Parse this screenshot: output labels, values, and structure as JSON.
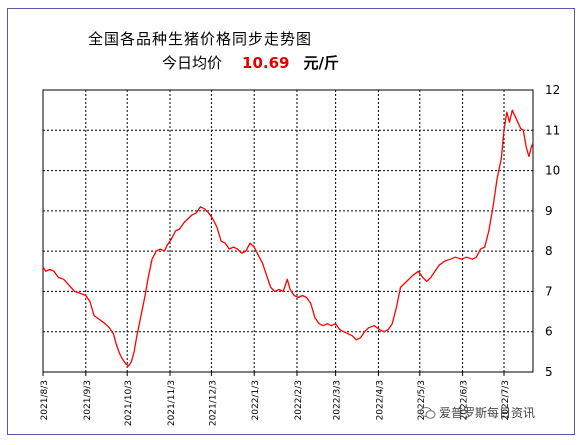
{
  "chart_data": {
    "type": "line",
    "title": "全国各品种生猪价格同步走势图",
    "subtitle_label": "今日均价",
    "subtitle_value": "10.69",
    "subtitle_unit": "元/斤",
    "x_tick_labels": [
      "2021/8/3",
      "2021/9/3",
      "2021/10/3",
      "2021/11/3",
      "2021/12/3",
      "2022/1/3",
      "2022/2/3",
      "2022/3/3",
      "2022/4/3",
      "2022/5/3",
      "2022/6/3",
      "2022/7/3"
    ],
    "x_range": [
      "2021-08-03",
      "2022-07-24"
    ],
    "ylim": [
      5,
      12
    ],
    "y_ticks": [
      5,
      6,
      7,
      8,
      9,
      10,
      11,
      12
    ],
    "grid": true,
    "line_color": "#ff0000",
    "series": [
      {
        "points": [
          [
            "2021-08-03",
            7.6
          ],
          [
            "2021-08-05",
            7.5
          ],
          [
            "2021-08-08",
            7.55
          ],
          [
            "2021-08-11",
            7.5
          ],
          [
            "2021-08-14",
            7.35
          ],
          [
            "2021-08-18",
            7.3
          ],
          [
            "2021-08-22",
            7.15
          ],
          [
            "2021-08-26",
            7.0
          ],
          [
            "2021-08-30",
            6.95
          ],
          [
            "2021-09-03",
            6.9
          ],
          [
            "2021-09-06",
            6.75
          ],
          [
            "2021-09-09",
            6.4
          ],
          [
            "2021-09-13",
            6.3
          ],
          [
            "2021-09-17",
            6.2
          ],
          [
            "2021-09-20",
            6.1
          ],
          [
            "2021-09-23",
            5.95
          ],
          [
            "2021-09-25",
            5.7
          ],
          [
            "2021-09-27",
            5.5
          ],
          [
            "2021-09-29",
            5.35
          ],
          [
            "2021-10-02",
            5.2
          ],
          [
            "2021-10-04",
            5.15
          ],
          [
            "2021-10-06",
            5.25
          ],
          [
            "2021-10-08",
            5.5
          ],
          [
            "2021-10-10",
            5.9
          ],
          [
            "2021-10-13",
            6.4
          ],
          [
            "2021-10-16",
            6.9
          ],
          [
            "2021-10-18",
            7.3
          ],
          [
            "2021-10-21",
            7.8
          ],
          [
            "2021-10-24",
            8.0
          ],
          [
            "2021-10-27",
            8.05
          ],
          [
            "2021-10-30",
            8.0
          ],
          [
            "2021-11-01",
            8.15
          ],
          [
            "2021-11-04",
            8.3
          ],
          [
            "2021-11-07",
            8.5
          ],
          [
            "2021-11-10",
            8.55
          ],
          [
            "2021-11-13",
            8.7
          ],
          [
            "2021-11-16",
            8.8
          ],
          [
            "2021-11-19",
            8.9
          ],
          [
            "2021-11-22",
            8.95
          ],
          [
            "2021-11-25",
            9.1
          ],
          [
            "2021-11-28",
            9.05
          ],
          [
            "2021-12-01",
            8.95
          ],
          [
            "2021-12-04",
            8.8
          ],
          [
            "2021-12-07",
            8.6
          ],
          [
            "2021-12-10",
            8.25
          ],
          [
            "2021-12-13",
            8.2
          ],
          [
            "2021-12-16",
            8.05
          ],
          [
            "2021-12-19",
            8.1
          ],
          [
            "2021-12-22",
            8.05
          ],
          [
            "2021-12-25",
            7.95
          ],
          [
            "2021-12-28",
            8.0
          ],
          [
            "2021-12-31",
            8.2
          ],
          [
            "2022-01-03",
            8.1
          ],
          [
            "2022-01-06",
            7.9
          ],
          [
            "2022-01-09",
            7.7
          ],
          [
            "2022-01-12",
            7.4
          ],
          [
            "2022-01-15",
            7.1
          ],
          [
            "2022-01-18",
            7.0
          ],
          [
            "2022-01-21",
            7.05
          ],
          [
            "2022-01-24",
            7.0
          ],
          [
            "2022-01-27",
            7.3
          ],
          [
            "2022-01-29",
            7.05
          ],
          [
            "2022-02-01",
            6.9
          ],
          [
            "2022-02-04",
            6.85
          ],
          [
            "2022-02-07",
            6.9
          ],
          [
            "2022-02-10",
            6.85
          ],
          [
            "2022-02-13",
            6.7
          ],
          [
            "2022-02-16",
            6.35
          ],
          [
            "2022-02-19",
            6.2
          ],
          [
            "2022-02-22",
            6.15
          ],
          [
            "2022-02-25",
            6.2
          ],
          [
            "2022-02-28",
            6.15
          ],
          [
            "2022-03-03",
            6.2
          ],
          [
            "2022-03-06",
            6.05
          ],
          [
            "2022-03-09",
            6.0
          ],
          [
            "2022-03-12",
            5.95
          ],
          [
            "2022-03-15",
            5.9
          ],
          [
            "2022-03-18",
            5.8
          ],
          [
            "2022-03-21",
            5.85
          ],
          [
            "2022-03-24",
            6.0
          ],
          [
            "2022-03-27",
            6.1
          ],
          [
            "2022-03-31",
            6.15
          ],
          [
            "2022-04-04",
            6.05
          ],
          [
            "2022-04-07",
            6.0
          ],
          [
            "2022-04-10",
            6.05
          ],
          [
            "2022-04-13",
            6.2
          ],
          [
            "2022-04-16",
            6.6
          ],
          [
            "2022-04-19",
            7.1
          ],
          [
            "2022-04-22",
            7.2
          ],
          [
            "2022-04-25",
            7.3
          ],
          [
            "2022-04-28",
            7.4
          ],
          [
            "2022-05-02",
            7.5
          ],
          [
            "2022-05-05",
            7.35
          ],
          [
            "2022-05-08",
            7.25
          ],
          [
            "2022-05-11",
            7.35
          ],
          [
            "2022-05-14",
            7.5
          ],
          [
            "2022-05-17",
            7.65
          ],
          [
            "2022-05-21",
            7.75
          ],
          [
            "2022-05-25",
            7.8
          ],
          [
            "2022-05-29",
            7.85
          ],
          [
            "2022-06-02",
            7.8
          ],
          [
            "2022-06-06",
            7.85
          ],
          [
            "2022-06-10",
            7.8
          ],
          [
            "2022-06-13",
            7.85
          ],
          [
            "2022-06-16",
            8.05
          ],
          [
            "2022-06-19",
            8.1
          ],
          [
            "2022-06-22",
            8.5
          ],
          [
            "2022-06-25",
            9.1
          ],
          [
            "2022-06-28",
            9.8
          ],
          [
            "2022-07-01",
            10.3
          ],
          [
            "2022-07-03",
            11.0
          ],
          [
            "2022-07-05",
            11.45
          ],
          [
            "2022-07-07",
            11.2
          ],
          [
            "2022-07-09",
            11.5
          ],
          [
            "2022-07-11",
            11.35
          ],
          [
            "2022-07-13",
            11.2
          ],
          [
            "2022-07-15",
            11.05
          ],
          [
            "2022-07-17",
            11.0
          ],
          [
            "2022-07-19",
            10.6
          ],
          [
            "2022-07-21",
            10.35
          ],
          [
            "2022-07-23",
            10.6
          ],
          [
            "2022-07-24",
            10.69
          ]
        ]
      }
    ]
  },
  "watermark": {
    "text": "爱普罗斯每日资讯"
  }
}
